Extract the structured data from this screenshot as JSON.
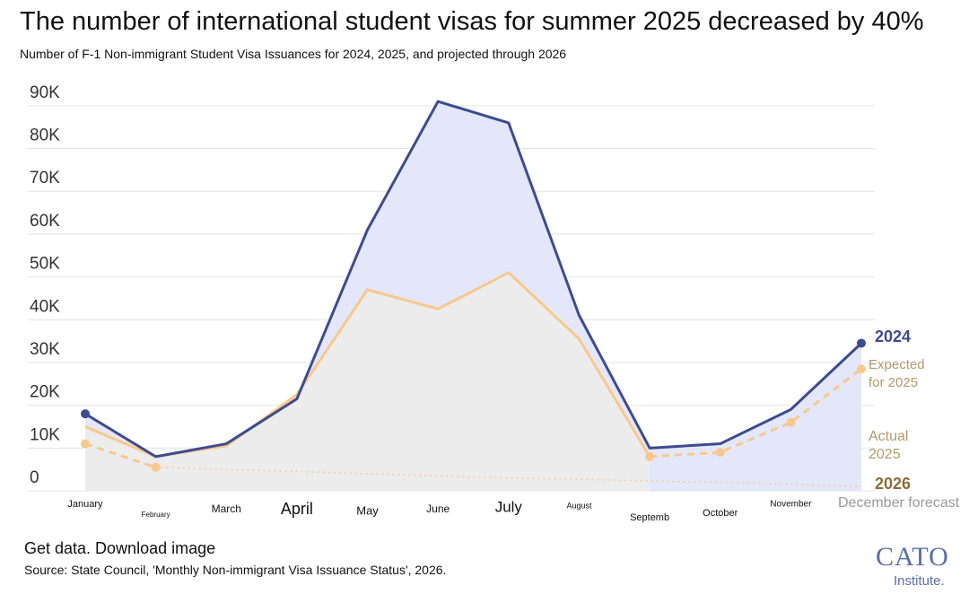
{
  "chart_data": {
    "type": "line",
    "title": "The number of international student visas for summer 2025 decreased by 40%",
    "subtitle": "Number of F-1 Non-immigrant Student Visa Issuances for 2024, 2025, and projected through 2026",
    "categories": [
      "January",
      "February",
      "March",
      "April",
      "May",
      "June",
      "July",
      "August",
      "Septemb",
      "October",
      "November",
      null
    ],
    "series": [
      {
        "name": "2024",
        "color": "#3d4b8f",
        "fill": "#e4e7fa",
        "style": "solid",
        "values": [
          18000,
          8000,
          11000,
          21500,
          61000,
          91000,
          86000,
          41000,
          10000,
          11000,
          19000,
          34500
        ]
      },
      {
        "name": "Actual 2025",
        "color": "#f8c88c",
        "fill": "#ececec",
        "style": "solid",
        "values": [
          15000,
          8000,
          10500,
          22500,
          47000,
          42500,
          51000,
          35500,
          8000,
          null,
          null,
          null
        ]
      },
      {
        "name": "Expected for 2025",
        "color": "#f8c88c",
        "style": "dashed",
        "values": [
          11000,
          5500,
          null,
          null,
          null,
          null,
          null,
          null,
          8000,
          9000,
          16000,
          28500
        ]
      },
      {
        "name": "2026",
        "color": "#f8c88c",
        "style": "dotted",
        "values": [
          null,
          5500,
          5000,
          4500,
          4000,
          3500,
          3000,
          2700,
          2300,
          2000,
          1500,
          1000
        ]
      }
    ],
    "annotations": [
      "December forecast"
    ],
    "ylim": [
      0,
      95000
    ],
    "yticks": [
      {
        "value": 0,
        "label": "0"
      },
      {
        "value": 10000,
        "label": "10K"
      },
      {
        "value": 20000,
        "label": "20K"
      },
      {
        "value": 30000,
        "label": "30K"
      },
      {
        "value": 40000,
        "label": "40K"
      },
      {
        "value": 50000,
        "label": "50K"
      },
      {
        "value": 60000,
        "label": "60K"
      },
      {
        "value": 70000,
        "label": "70K"
      },
      {
        "value": 80000,
        "label": "80K"
      },
      {
        "value": 90000,
        "label": "90K"
      }
    ],
    "grid": true
  },
  "footer": {
    "links": "Get data. Download image",
    "source": "Source: State Council, 'Monthly Non-immigrant Visa Issuance Status', 2026.",
    "logo": "CATO",
    "logo_sub": "Institute."
  }
}
